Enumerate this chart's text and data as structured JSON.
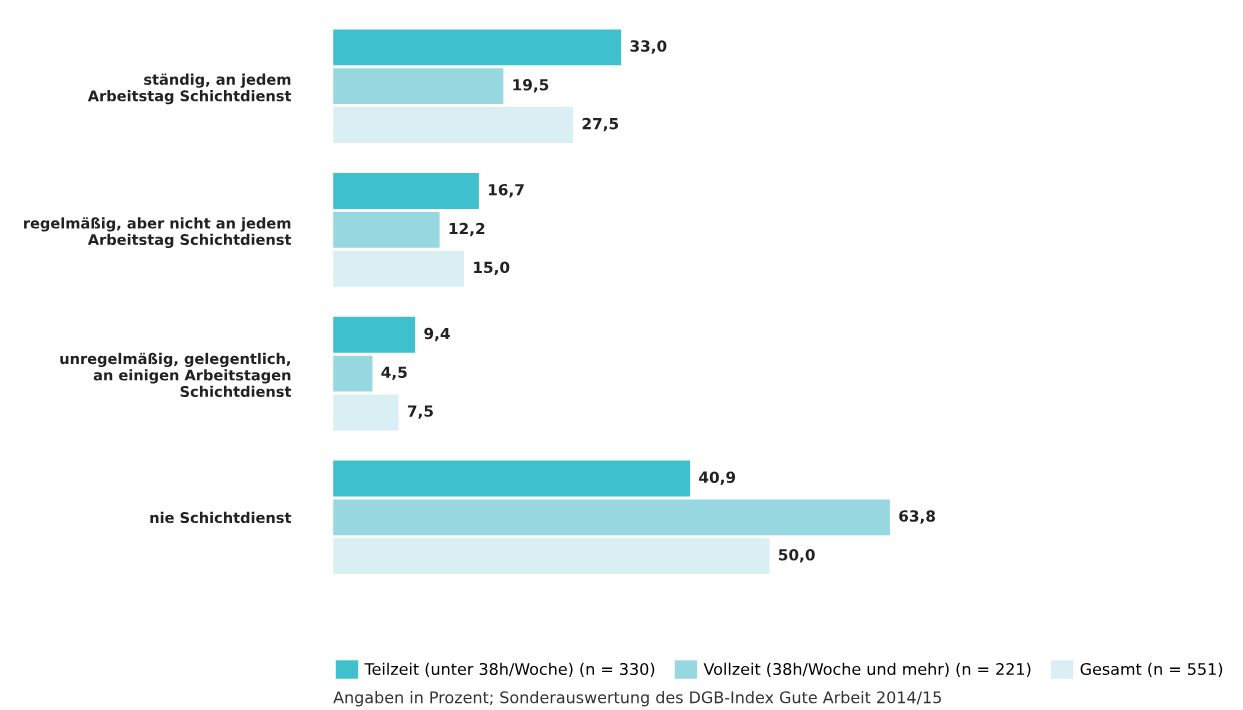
{
  "chart_data": {
    "type": "bar",
    "orientation": "horizontal",
    "categories": [
      "ständig, an jedem\nArbeitstag Schichtdienst",
      "regelmäßig, aber nicht an jedem\nArbeitstag Schichtdienst",
      "unregelmäßig, gelegentlich,\nan einigen Arbeitstagen\nSchichtdienst",
      "nie Schichtdienst"
    ],
    "series": [
      {
        "name": "Teilzeit (unter 38h/Woche) (n = 330)",
        "color": "#3ec1cd",
        "values": [
          33.0,
          16.7,
          9.4,
          40.9
        ],
        "value_labels": [
          "33,0",
          "16,7",
          "9,4",
          "40,9"
        ]
      },
      {
        "name": "Vollzeit (38h/Woche und mehr) (n = 221)",
        "color": "#97d7e0",
        "values": [
          19.5,
          12.2,
          4.5,
          63.8
        ],
        "value_labels": [
          "19,5",
          "12,2",
          "4,5",
          "63,8"
        ]
      },
      {
        "name": "Gesamt (n = 551)",
        "color": "#d9eff3",
        "values": [
          27.5,
          15.0,
          7.5,
          50.0
        ],
        "value_labels": [
          "27,5",
          "15,0",
          "7,5",
          "50,0"
        ]
      }
    ],
    "legend": "bottom",
    "annotations": [
      "Angaben in Prozent; Sonderauswertung des DGB-Index Gute Arbeit 2014/15"
    ]
  }
}
